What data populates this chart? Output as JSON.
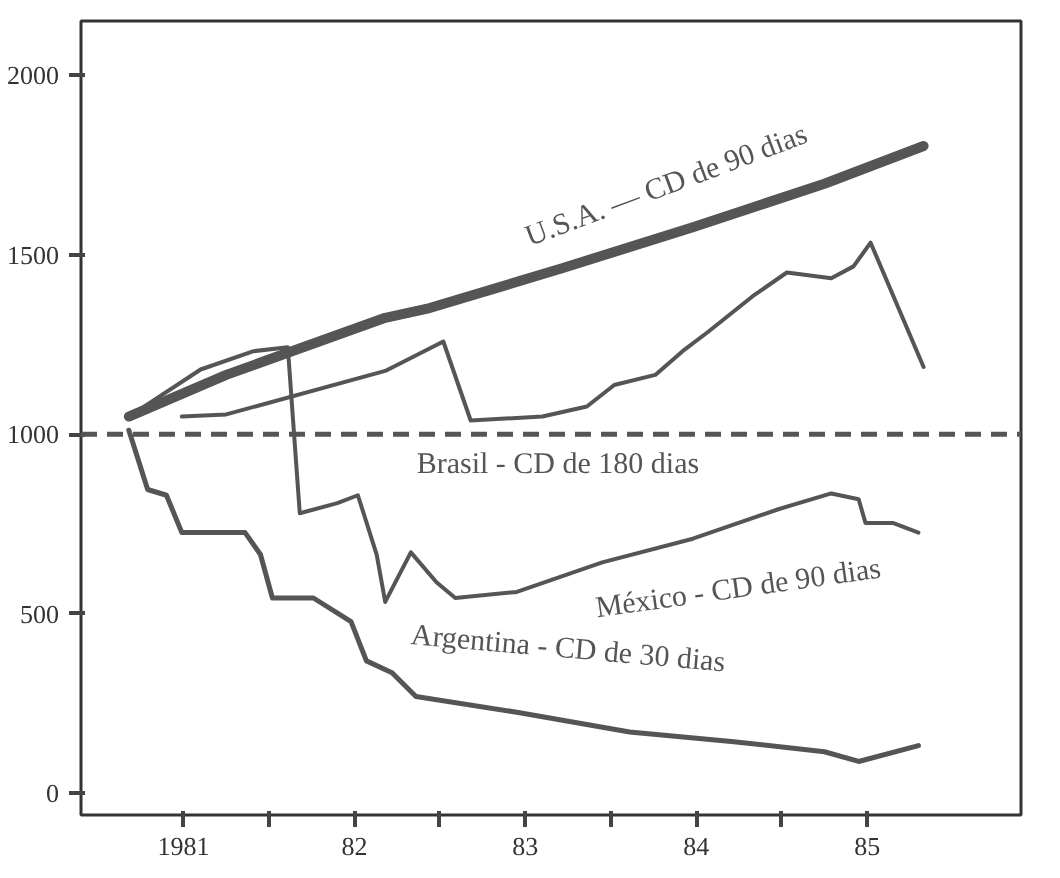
{
  "chart_data": {
    "type": "line",
    "xlim": [
      1980.4,
      1985.9
    ],
    "ylim": [
      -60,
      2150
    ],
    "xticks": [
      1981,
      {
        "value": 1982,
        "label": "82"
      },
      {
        "value": 1983,
        "label": "83"
      },
      {
        "value": 1984,
        "label": "84"
      },
      {
        "value": 1985,
        "label": "85"
      },
      {
        "value": 1981.5,
        "label": null
      },
      {
        "value": 1982.5,
        "label": null
      },
      {
        "value": 1983.5,
        "label": null
      },
      {
        "value": 1984.5,
        "label": null
      }
    ],
    "yticks": [
      0,
      500,
      1000,
      1500,
      2000
    ],
    "grid": false,
    "marker": "none",
    "line_style": "solid",
    "ref_lines": [
      {
        "axis": "y",
        "value": 1000,
        "label": null,
        "line_style": "dashed",
        "color": "#555555"
      }
    ],
    "series": [
      {
        "name": "U.S.A. — CD de 90 dias",
        "color": "#555555",
        "x": [
          1980.68,
          1981.25,
          1982.18,
          1982.44,
          1983.21,
          1983.98,
          1984.75,
          1985.33
        ],
        "values": [
          1049,
          1165,
          1324,
          1351,
          1461,
          1576,
          1697,
          1802
        ]
      },
      {
        "name": "Brasil - CD de 180 dias",
        "color": "#555555",
        "x": [
          1980.99,
          1981.25,
          1982.18,
          1982.52,
          1982.68,
          1983.1,
          1983.36,
          1983.52,
          1983.76,
          1983.92,
          1984.07,
          1984.33,
          1984.53,
          1984.79,
          1984.92,
          1985.02,
          1985.33
        ],
        "values": [
          1049,
          1055,
          1176,
          1258,
          1038,
          1049,
          1077,
          1137,
          1165,
          1231,
          1285,
          1384,
          1450,
          1434,
          1467,
          1533,
          1187
        ]
      },
      {
        "name": "México - CD de 90 dias",
        "color": "#555555",
        "x": [
          1980.68,
          1981.1,
          1981.41,
          1981.61,
          1981.68,
          1981.9,
          1982.02,
          1982.13,
          1982.18,
          1982.33,
          1982.48,
          1982.59,
          1982.95,
          1983.45,
          1983.98,
          1984.48,
          1984.79,
          1984.95,
          1984.99,
          1985.15,
          1985.3
        ],
        "values": [
          1049,
          1180,
          1231,
          1242,
          780,
          808,
          830,
          665,
          533,
          671,
          588,
          544,
          561,
          643,
          709,
          791,
          835,
          819,
          753,
          753,
          726
        ]
      },
      {
        "name": "Argentina - CD de 30 dias",
        "color": "#555555",
        "x": [
          1980.68,
          1980.79,
          1980.9,
          1980.99,
          1981.36,
          1981.45,
          1981.52,
          1981.76,
          1981.98,
          1982.07,
          1982.22,
          1982.36,
          1982.95,
          1983.61,
          1984.22,
          1984.75,
          1984.95,
          1985.3
        ],
        "values": [
          1011,
          846,
          830,
          726,
          726,
          665,
          544,
          544,
          478,
          369,
          336,
          270,
          226,
          171,
          144,
          116,
          89,
          133
        ]
      }
    ]
  }
}
